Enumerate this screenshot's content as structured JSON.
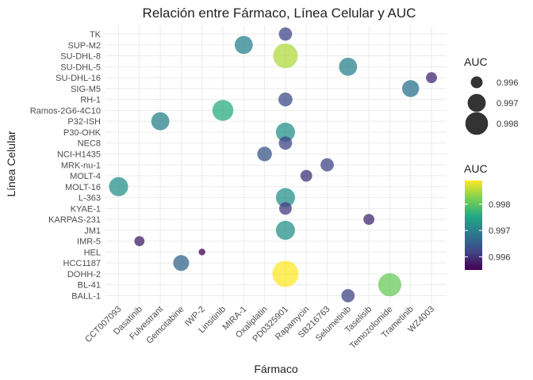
{
  "chart_data": {
    "type": "scatter",
    "title": "Relación entre Fármaco, Línea Celular y AUC",
    "xlabel": "Fármaco",
    "ylabel": "Línea Celular",
    "x_categories": [
      "CCT007093",
      "Dasatinib",
      "Fulvestrant",
      "Gemcitabine",
      "IWP-2",
      "Linsitinib",
      "MIRA-1",
      "Oxaliplatin",
      "PD0325901",
      "Rapamycin",
      "SB216763",
      "Selumetinib",
      "Taselisib",
      "Temozolomide",
      "Trametinib",
      "WZ4003"
    ],
    "y_categories": [
      "BALL-1",
      "BL-41",
      "DOHH-2",
      "HCC1187",
      "HEL",
      "IMR-5",
      "JM1",
      "KARPAS-231",
      "KYAE-1",
      "L-363",
      "MOLT-16",
      "MOLT-4",
      "MRK-nu-1",
      "NCI-H1435",
      "NEC8",
      "P30-OHK",
      "P32-ISH",
      "Ramos-2G6-4C10",
      "RH-1",
      "SIG-M5",
      "SU-DHL-16",
      "SU-DHL-5",
      "SU-DHL-8",
      "SUP-M2",
      "TK"
    ],
    "points": [
      {
        "x": "PD0325901",
        "y": "TK",
        "auc": 0.9962
      },
      {
        "x": "MIRA-1",
        "y": "SUP-M2",
        "auc": 0.997
      },
      {
        "x": "PD0325901",
        "y": "SU-DHL-8",
        "auc": 0.9985
      },
      {
        "x": "Selumetinib",
        "y": "SU-DHL-5",
        "auc": 0.997
      },
      {
        "x": "WZ4003",
        "y": "SU-DHL-16",
        "auc": 0.9959
      },
      {
        "x": "Trametinib",
        "y": "SIG-M5",
        "auc": 0.9968
      },
      {
        "x": "PD0325901",
        "y": "RH-1",
        "auc": 0.9963
      },
      {
        "x": "Linsitinib",
        "y": "Ramos-2G6-4C10",
        "auc": 0.9976
      },
      {
        "x": "Fulvestrant",
        "y": "P32-ISH",
        "auc": 0.997
      },
      {
        "x": "PD0325901",
        "y": "P30-OHK",
        "auc": 0.9972
      },
      {
        "x": "PD0325901",
        "y": "NEC8",
        "auc": 0.9962
      },
      {
        "x": "Oxaliplatin",
        "y": "NCI-H1435",
        "auc": 0.9964
      },
      {
        "x": "SB216763",
        "y": "MRK-nu-1",
        "auc": 0.9962
      },
      {
        "x": "Rapamycin",
        "y": "MOLT-4",
        "auc": 0.996
      },
      {
        "x": "CCT007093",
        "y": "MOLT-16",
        "auc": 0.9972
      },
      {
        "x": "PD0325901",
        "y": "L-363",
        "auc": 0.9972
      },
      {
        "x": "PD0325901",
        "y": "KYAE-1",
        "auc": 0.9961
      },
      {
        "x": "Taselisib",
        "y": "KARPAS-231",
        "auc": 0.9959
      },
      {
        "x": "PD0325901",
        "y": "JM1",
        "auc": 0.9972
      },
      {
        "x": "Dasatinib",
        "y": "IMR-5",
        "auc": 0.9958
      },
      {
        "x": "IWP-2",
        "y": "HEL",
        "auc": 0.9955
      },
      {
        "x": "Gemcitabine",
        "y": "HCC1187",
        "auc": 0.9966
      },
      {
        "x": "PD0325901",
        "y": "DOHH-2",
        "auc": 0.9989
      },
      {
        "x": "Temozolomide",
        "y": "BL-41",
        "auc": 0.9981
      },
      {
        "x": "Selumetinib",
        "y": "BALL-1",
        "auc": 0.9962
      }
    ],
    "size_legend": {
      "title": "AUC",
      "breaks": [
        0.996,
        0.997,
        0.998
      ],
      "labels": [
        "0.996",
        "0.997",
        "0.998"
      ]
    },
    "color_legend": {
      "title": "AUC",
      "breaks": [
        0.996,
        0.997,
        0.998
      ],
      "labels": [
        "0.996",
        "0.997",
        "0.998"
      ],
      "range": [
        0.9955,
        0.9989
      ],
      "palette": "viridis"
    },
    "legend_position": "right",
    "grid": true
  }
}
